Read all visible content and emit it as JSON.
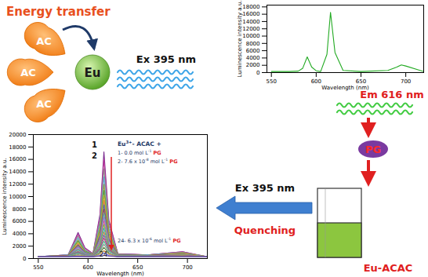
{
  "title": "Energy transfer",
  "ligands": [
    "AC",
    "AC",
    "AC"
  ],
  "ion": "Eu",
  "excitation_top": "Ex 395 nm",
  "emission": "Em 616 nm",
  "quencher": "PG",
  "cuvette_label": "Eu-ACAC",
  "excitation_bottom": "Ex 395 nm",
  "process": "Quenching",
  "chart_data": [
    {
      "type": "line",
      "x_label": "Wavelength (nm)",
      "y_label": "Luminescence intensity a.u.",
      "x": [
        550,
        570,
        580,
        585,
        590,
        595,
        600,
        605,
        612,
        616,
        621,
        630,
        650,
        680,
        690,
        695,
        700,
        720
      ],
      "series": [
        {
          "color": "#22aa22",
          "values": [
            300,
            300,
            400,
            1200,
            4300,
            1500,
            500,
            300,
            5000,
            16500,
            5500,
            600,
            300,
            600,
            1500,
            2100,
            1800,
            300
          ]
        }
      ],
      "xlim": [
        545,
        720
      ],
      "xticks": [
        550,
        600,
        650,
        700
      ],
      "ylim": [
        0,
        18500
      ],
      "yticks": [
        0,
        2000,
        4000,
        6000,
        8000,
        10000,
        12000,
        14000,
        16000,
        18000
      ],
      "grid": false
    },
    {
      "type": "line",
      "x_label": "Wavelength (nm)",
      "y_label": "Luminescence intensity a.u.",
      "x": [
        550,
        580,
        590,
        597,
        605,
        612,
        616,
        621,
        630,
        660,
        695,
        720
      ],
      "series": [
        {
          "color": "#7b2c8f",
          "values": [
            300,
            600,
            4200,
            1700,
            800,
            7100,
            17200,
            6200,
            800,
            600,
            1100,
            300
          ]
        },
        {
          "color": "#c0399b",
          "values": [
            300,
            600,
            3900,
            1600,
            800,
            6600,
            16000,
            5800,
            800,
            600,
            1100,
            300
          ]
        },
        {
          "color": "#8c8c8c",
          "values": [
            300,
            600,
            3600,
            1400,
            700,
            6000,
            14500,
            5300,
            700,
            600,
            1000,
            300
          ]
        },
        {
          "color": "#5fa8d3",
          "values": [
            300,
            600,
            3300,
            1300,
            700,
            5500,
            13200,
            4800,
            700,
            600,
            900,
            300
          ]
        },
        {
          "color": "#9c9c3a",
          "values": [
            300,
            500,
            3000,
            1200,
            700,
            5000,
            12000,
            4400,
            700,
            500,
            900,
            300
          ]
        },
        {
          "color": "#4d9c4d",
          "values": [
            300,
            500,
            2800,
            1200,
            600,
            4600,
            11000,
            4000,
            600,
            500,
            800,
            300
          ]
        },
        {
          "color": "#c7b92c",
          "values": [
            300,
            500,
            2600,
            1100,
            600,
            4300,
            10200,
            3800,
            600,
            500,
            800,
            300
          ]
        },
        {
          "color": "#e07b39",
          "values": [
            300,
            500,
            2400,
            1000,
            600,
            3900,
            9400,
            3500,
            600,
            500,
            800,
            300
          ]
        },
        {
          "color": "#3f6fb5",
          "values": [
            300,
            500,
            2200,
            1000,
            600,
            3700,
            8700,
            3200,
            600,
            500,
            700,
            300
          ]
        },
        {
          "color": "#a14d4d",
          "values": [
            300,
            500,
            2100,
            900,
            500,
            3400,
            8000,
            3000,
            500,
            500,
            700,
            300
          ]
        },
        {
          "color": "#58b8a8",
          "values": [
            300,
            400,
            1900,
            900,
            500,
            3100,
            7300,
            2800,
            500,
            400,
            700,
            300
          ]
        },
        {
          "color": "#9370db",
          "values": [
            300,
            400,
            1800,
            800,
            500,
            2900,
            6700,
            2500,
            500,
            400,
            600,
            300
          ]
        },
        {
          "color": "#d6609a",
          "values": [
            300,
            400,
            1600,
            800,
            500,
            2600,
            6100,
            2300,
            500,
            400,
            600,
            300
          ]
        },
        {
          "color": "#7fbf3f",
          "values": [
            300,
            400,
            1500,
            700,
            500,
            2400,
            5500,
            2100,
            500,
            400,
            600,
            300
          ]
        },
        {
          "color": "#3fa0bf",
          "values": [
            300,
            400,
            1400,
            700,
            400,
            2100,
            4900,
            1900,
            400,
            400,
            500,
            300
          ]
        },
        {
          "color": "#bf8f3f",
          "values": [
            300,
            400,
            1200,
            600,
            400,
            1900,
            4300,
            1700,
            400,
            400,
            500,
            300
          ]
        },
        {
          "color": "#6f6fbf",
          "values": [
            300,
            400,
            1100,
            600,
            400,
            1700,
            3800,
            1500,
            400,
            400,
            500,
            300
          ]
        },
        {
          "color": "#bf3f6f",
          "values": [
            300,
            400,
            1000,
            500,
            400,
            1500,
            3300,
            1400,
            400,
            400,
            500,
            300
          ]
        },
        {
          "color": "#3fbf8f",
          "values": [
            300,
            400,
            900,
            500,
            400,
            1300,
            2800,
            1200,
            400,
            400,
            400,
            300
          ]
        },
        {
          "color": "#8f8f8f",
          "values": [
            300,
            300,
            800,
            500,
            400,
            1100,
            2300,
            1000,
            400,
            300,
            400,
            300
          ]
        },
        {
          "color": "#4f7f2f",
          "values": [
            300,
            300,
            600,
            400,
            300,
            900,
            1800,
            800,
            300,
            300,
            400,
            300
          ]
        },
        {
          "color": "#cf9f5f",
          "values": [
            300,
            300,
            500,
            400,
            300,
            700,
            1300,
            700,
            300,
            300,
            400,
            300
          ]
        },
        {
          "color": "#5f5fdf",
          "values": [
            300,
            300,
            400,
            300,
            300,
            500,
            900,
            500,
            300,
            300,
            300,
            300
          ]
        },
        {
          "color": "#6f4f9f",
          "values": [
            300,
            300,
            300,
            300,
            300,
            400,
            500,
            400,
            300,
            300,
            300,
            300
          ]
        }
      ],
      "xlim": [
        545,
        720
      ],
      "xticks": [
        550,
        600,
        650,
        700
      ],
      "ylim": [
        0,
        20000
      ],
      "yticks": [
        0,
        2000,
        4000,
        6000,
        8000,
        10000,
        12000,
        14000,
        16000,
        18000,
        20000
      ],
      "grid": false,
      "curve_labels": [
        "1",
        "2",
        "24"
      ],
      "annotation_header": {
        "text": "Eu",
        "sup": "3+",
        "after": "- ACAC +"
      },
      "annotations": [
        {
          "text": "1- 0.0 mol L",
          "sup": "-1",
          "highlight": "PG"
        },
        {
          "text": "2- 7.6 x 10",
          "sup": "-8",
          "after": " mol L",
          "sup2": "-1",
          "highlight": "PG"
        },
        {
          "text": "24- 6.3 x 10",
          "sup": "-6",
          "after": " mol L",
          "sup2": "-1",
          "highlight": "PG"
        }
      ]
    }
  ]
}
